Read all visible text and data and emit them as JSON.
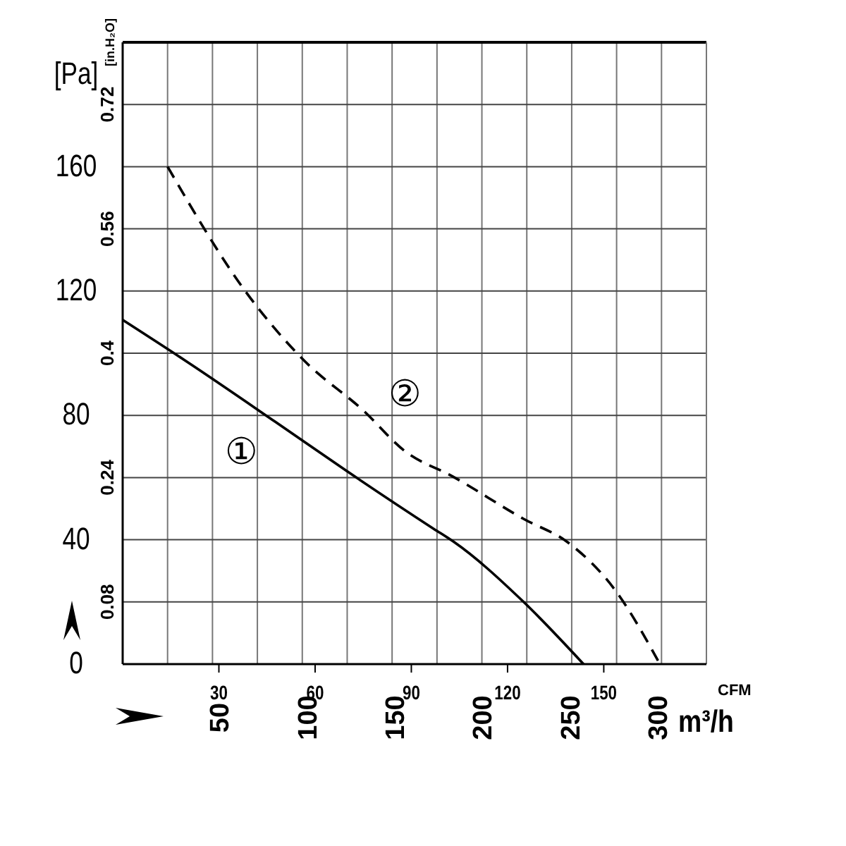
{
  "chart_data": {
    "type": "line",
    "ylabel": "[Pa]",
    "y2label": "[in.H₂O]",
    "xlabel": "CFM",
    "x2label": "m³/h",
    "xlim": [
      0,
      182
    ],
    "xticks": [
      {
        "value": 14,
        "label": null
      },
      {
        "value": 28,
        "label": null
      },
      30,
      {
        "value": 42,
        "label": null
      },
      {
        "value": 56,
        "label": null
      },
      60,
      {
        "value": 70,
        "label": null
      },
      {
        "value": 84,
        "label": null
      },
      90,
      {
        "value": 98,
        "label": null
      },
      {
        "value": 112,
        "label": null
      },
      120,
      {
        "value": 126,
        "label": null
      },
      {
        "value": 140,
        "label": null
      },
      150,
      {
        "value": 154,
        "label": null
      },
      {
        "value": 168,
        "label": null
      }
    ],
    "x2lim": [
      -5,
      328
    ],
    "x2ticks": [
      50,
      100,
      150,
      200,
      250,
      300
    ],
    "ylim": [
      0,
      200
    ],
    "yticks": [
      0,
      {
        "value": 20,
        "label": null
      },
      40,
      {
        "value": 60,
        "label": null
      },
      80,
      {
        "value": 100,
        "label": null
      },
      120,
      {
        "value": 140,
        "label": null
      },
      160,
      {
        "value": 180,
        "label": null
      }
    ],
    "y2lim": [
      0,
      0.8
    ],
    "y2ticks": [
      0.08,
      0.24,
      0.4,
      0.56,
      0.72
    ],
    "grid": true,
    "marker": "none",
    "series": [
      {
        "name": "①",
        "color": "#000000",
        "line_style": "solid",
        "x": [
          0,
          21,
          47.5,
          70,
          97,
          103,
          125,
          143.7
        ],
        "values": [
          110.7,
          96.6,
          78,
          62,
          43.5,
          39.5,
          20,
          0
        ]
      },
      {
        "name": "②",
        "color": "#000000",
        "line_style": "dashed",
        "x": [
          14,
          38.7,
          56.7,
          75,
          88,
          103,
          125,
          139,
          153.4,
          167.5
        ],
        "values": [
          160,
          119.3,
          97.5,
          81.6,
          68.5,
          60.3,
          46.7,
          39,
          24,
          0
        ]
      }
    ]
  }
}
